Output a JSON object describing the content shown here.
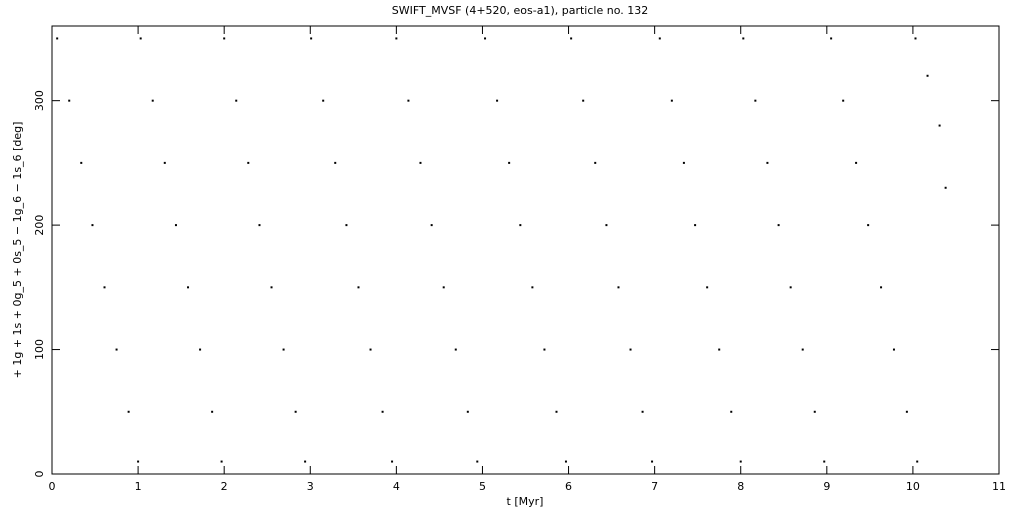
{
  "chart_data": {
    "type": "scatter",
    "title": "SWIFT_MVSF (4+520, eos-a1), particle no. 132",
    "xlabel": "t [Myr]",
    "ylabel": "+ 1g + 1s + 0g_5 + 0s_5 − 1g_6 − 1s_6 [deg]",
    "color": "#000000",
    "x": [
      0.06,
      0.2,
      0.34,
      0.47,
      0.61,
      0.75,
      0.89,
      1.0,
      1.03,
      1.17,
      1.31,
      1.44,
      1.58,
      1.72,
      1.86,
      1.97,
      2.0,
      2.14,
      2.28,
      2.41,
      2.55,
      2.69,
      2.83,
      2.94,
      3.01,
      3.15,
      3.29,
      3.42,
      3.56,
      3.7,
      3.84,
      3.95,
      4.0,
      4.14,
      4.28,
      4.41,
      4.55,
      4.69,
      4.83,
      4.94,
      5.03,
      5.17,
      5.31,
      5.44,
      5.58,
      5.72,
      5.86,
      5.97,
      6.03,
      6.17,
      6.31,
      6.44,
      6.58,
      6.72,
      6.86,
      6.97,
      7.06,
      7.2,
      7.34,
      7.47,
      7.61,
      7.75,
      7.89,
      8.0,
      8.03,
      8.17,
      8.31,
      8.44,
      8.58,
      8.72,
      8.86,
      8.97,
      9.05,
      9.19,
      9.34,
      9.48,
      9.63,
      9.78,
      9.93,
      10.05,
      10.03,
      10.17,
      10.31,
      10.38
    ],
    "values": [
      350,
      300,
      250,
      200,
      150,
      100,
      50,
      10,
      350,
      300,
      250,
      200,
      150,
      100,
      50,
      10,
      350,
      300,
      250,
      200,
      150,
      100,
      50,
      10,
      350,
      300,
      250,
      200,
      150,
      100,
      50,
      10,
      350,
      300,
      250,
      200,
      150,
      100,
      50,
      10,
      350,
      300,
      250,
      200,
      150,
      100,
      50,
      10,
      350,
      300,
      250,
      200,
      150,
      100,
      50,
      10,
      350,
      300,
      250,
      200,
      150,
      100,
      50,
      10,
      350,
      300,
      250,
      200,
      150,
      100,
      50,
      10,
      350,
      300,
      250,
      200,
      150,
      100,
      50,
      10,
      350,
      320,
      280,
      230
    ],
    "xlim": [
      0,
      11
    ],
    "xticks": [
      0,
      1,
      2,
      3,
      4,
      5,
      6,
      7,
      8,
      9,
      10,
      11
    ],
    "ylim": [
      0,
      360
    ],
    "yticks": [
      0,
      100,
      200,
      300
    ]
  }
}
